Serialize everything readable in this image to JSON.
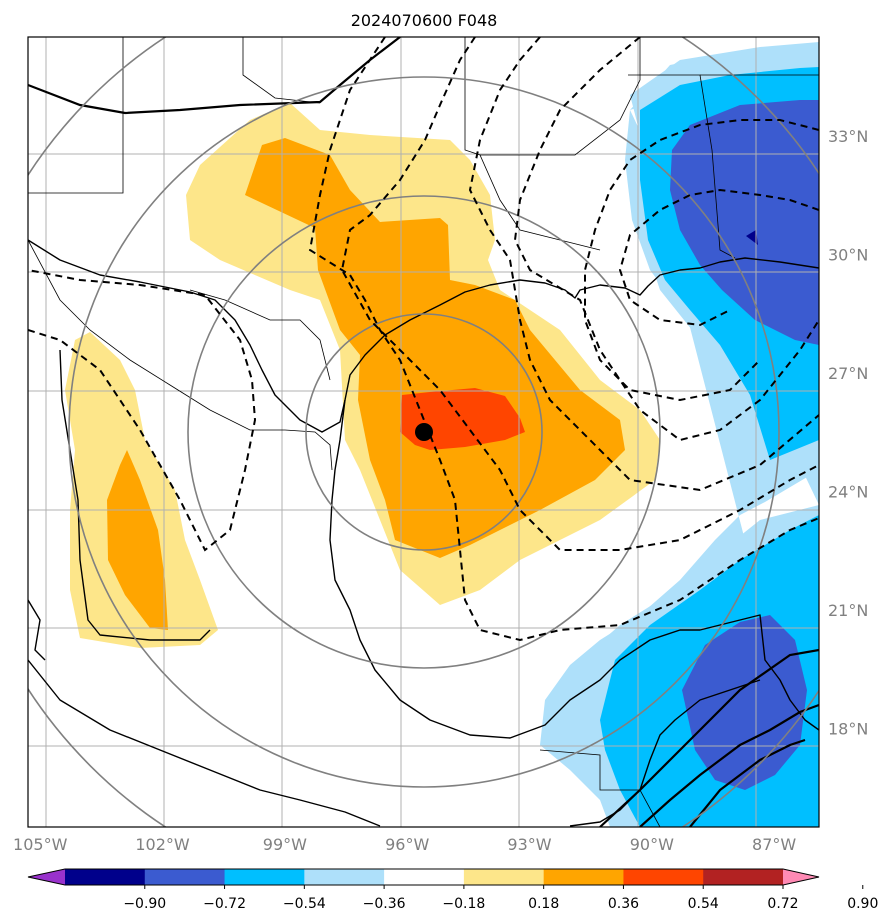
{
  "title": "2024070600 F048",
  "map": {
    "lon_range": [
      -105.3,
      -85.9
    ],
    "lat_range": [
      15.5,
      35.5
    ],
    "lon_ticks": [
      {
        "value": -105,
        "label": "105°W"
      },
      {
        "value": -102,
        "label": "102°W"
      },
      {
        "value": -99,
        "label": "99°W"
      },
      {
        "value": -96,
        "label": "96°W"
      },
      {
        "value": -93,
        "label": "93°W"
      },
      {
        "value": -90,
        "label": "90°W"
      },
      {
        "value": -87,
        "label": "87°W"
      }
    ],
    "lat_ticks": [
      {
        "value": 18,
        "label": "18°N"
      },
      {
        "value": 21,
        "label": "21°N"
      },
      {
        "value": 24,
        "label": "24°N"
      },
      {
        "value": 27,
        "label": "27°N"
      },
      {
        "value": 30,
        "label": "30°N"
      },
      {
        "value": 33,
        "label": "33°N"
      }
    ],
    "gridlines": true,
    "storm_center": {
      "lon": -95.5,
      "lat": 25.9
    },
    "fill_levels": {
      "pos1": "#fde68a",
      "pos2": "#ffa500",
      "pos3": "#ff4500",
      "neg1": "#aee0fa",
      "neg2": "#00bfff",
      "neg3": "#3b5bd0",
      "neg4": "#00008b"
    },
    "line_colors": {
      "coast": "#000000",
      "range_ring": "#808080",
      "grid": "#b0b0b0"
    }
  },
  "colorbar": {
    "ticks": [
      "−0.90",
      "−0.72",
      "−0.54",
      "−0.36",
      "−0.18",
      "0.18",
      "0.36",
      "0.54",
      "0.72",
      "0.90"
    ],
    "colors": [
      "#9932cc",
      "#00008b",
      "#3b5bd0",
      "#00bfff",
      "#aee0fa",
      "#ffffff",
      "#fde68a",
      "#ffa500",
      "#ff4500",
      "#b22222",
      "#ff8ab4"
    ],
    "extend": "both"
  }
}
